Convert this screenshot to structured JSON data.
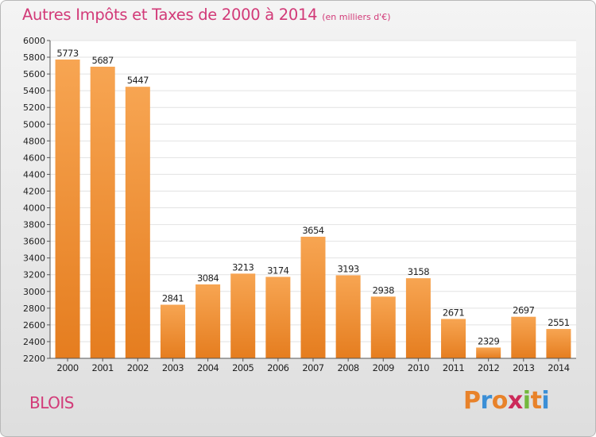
{
  "title": "Autres Impôts et Taxes de 2000 à 2014",
  "subtitle": "(en milliers d'€)",
  "city": "BLOIS",
  "brand": {
    "letters": [
      "P",
      "r",
      "o",
      "x",
      "i",
      "t",
      "i"
    ],
    "colors": [
      "#e8822a",
      "#3b8fd6",
      "#e8822a",
      "#cc2a5a",
      "#73b83e",
      "#e8822a",
      "#3b8fd6"
    ]
  },
  "colors": {
    "bar_light": "#f7a552",
    "bar_dark": "#e57d1f",
    "title": "#d23a78",
    "grid": "#e2e2e2"
  },
  "chart_data": {
    "type": "bar",
    "categories": [
      "2000",
      "2001",
      "2002",
      "2003",
      "2004",
      "2005",
      "2006",
      "2007",
      "2008",
      "2009",
      "2010",
      "2011",
      "2012",
      "2013",
      "2014"
    ],
    "values": [
      5773,
      5687,
      5447,
      2841,
      3084,
      3213,
      3174,
      3654,
      3193,
      2938,
      3158,
      2671,
      2329,
      2697,
      2551
    ],
    "ylim": [
      2200,
      6000
    ],
    "yticks": [
      2200,
      2400,
      2600,
      2800,
      3000,
      3200,
      3400,
      3600,
      3800,
      4000,
      4200,
      4400,
      4600,
      4800,
      5000,
      5200,
      5400,
      5600,
      5800,
      6000
    ],
    "grid": true,
    "data_labels": true
  }
}
